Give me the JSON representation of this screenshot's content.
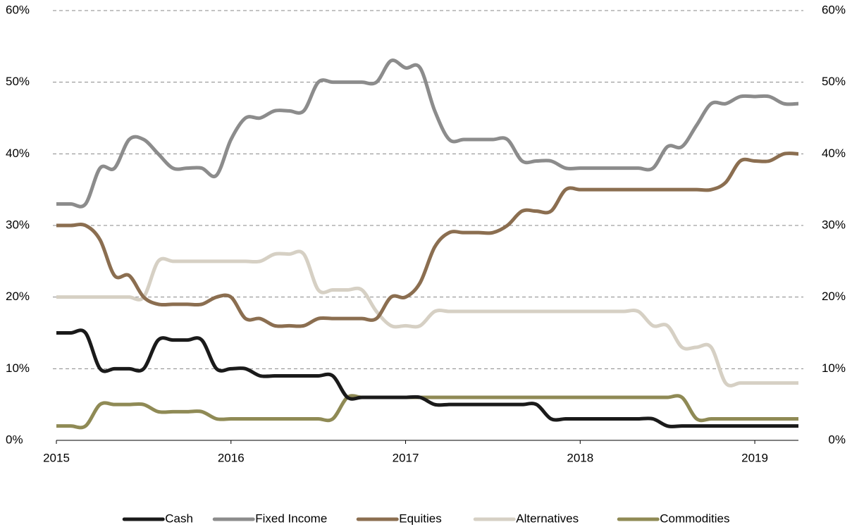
{
  "chart_data": {
    "type": "line",
    "x": [
      2015,
      2015.083,
      2015.167,
      2015.25,
      2015.333,
      2015.417,
      2015.5,
      2015.583,
      2015.667,
      2015.75,
      2015.833,
      2015.917,
      2016,
      2016.083,
      2016.167,
      2016.25,
      2016.333,
      2016.417,
      2016.5,
      2016.583,
      2016.667,
      2016.75,
      2016.833,
      2016.917,
      2017,
      2017.083,
      2017.167,
      2017.25,
      2017.333,
      2017.417,
      2017.5,
      2017.583,
      2017.667,
      2017.75,
      2017.833,
      2017.917,
      2018,
      2018.083,
      2018.167,
      2018.25,
      2018.333,
      2018.417,
      2018.5,
      2018.583,
      2018.667,
      2018.75,
      2018.833,
      2018.917,
      2019,
      2019.083,
      2019.167,
      2019.25
    ],
    "series": [
      {
        "name": "Cash",
        "color": "#1a1a1a",
        "values": [
          15,
          15,
          15,
          10,
          10,
          10,
          10,
          14,
          14,
          14,
          14,
          10,
          10,
          10,
          9,
          9,
          9,
          9,
          9,
          9,
          6,
          6,
          6,
          6,
          6,
          6,
          5,
          5,
          5,
          5,
          5,
          5,
          5,
          5,
          3,
          3,
          3,
          3,
          3,
          3,
          3,
          3,
          2,
          2,
          2,
          2,
          2,
          2,
          2,
          2,
          2,
          2
        ]
      },
      {
        "name": "Fixed Income",
        "color": "#8c8c8c",
        "values": [
          33,
          33,
          33,
          38,
          38,
          42,
          42,
          40,
          38,
          38,
          38,
          37,
          42,
          45,
          45,
          46,
          46,
          46,
          50,
          50,
          50,
          50,
          50,
          53,
          52,
          52,
          46,
          42,
          42,
          42,
          42,
          42,
          39,
          39,
          39,
          38,
          38,
          38,
          38,
          38,
          38,
          38,
          41,
          41,
          44,
          47,
          47,
          48,
          48,
          48,
          47,
          47
        ]
      },
      {
        "name": "Equities",
        "color": "#8b6e50",
        "values": [
          30,
          30,
          30,
          28,
          23,
          23,
          20,
          19,
          19,
          19,
          19,
          20,
          20,
          17,
          17,
          16,
          16,
          16,
          17,
          17,
          17,
          17,
          17,
          20,
          20,
          22,
          27,
          29,
          29,
          29,
          29,
          30,
          32,
          32,
          32,
          35,
          35,
          35,
          35,
          35,
          35,
          35,
          35,
          35,
          35,
          35,
          36,
          39,
          39,
          39,
          40,
          40
        ]
      },
      {
        "name": "Alternatives",
        "color": "#d6d0c4",
        "values": [
          20,
          20,
          20,
          20,
          20,
          20,
          20,
          25,
          25,
          25,
          25,
          25,
          25,
          25,
          25,
          26,
          26,
          26,
          21,
          21,
          21,
          21,
          18,
          16,
          16,
          16,
          18,
          18,
          18,
          18,
          18,
          18,
          18,
          18,
          18,
          18,
          18,
          18,
          18,
          18,
          18,
          16,
          16,
          13,
          13,
          13,
          8,
          8,
          8,
          8,
          8,
          8
        ]
      },
      {
        "name": "Commodities",
        "color": "#8f8a55",
        "values": [
          2,
          2,
          2,
          5,
          5,
          5,
          5,
          4,
          4,
          4,
          4,
          3,
          3,
          3,
          3,
          3,
          3,
          3,
          3,
          3,
          6,
          6,
          6,
          6,
          6,
          6,
          6,
          6,
          6,
          6,
          6,
          6,
          6,
          6,
          6,
          6,
          6,
          6,
          6,
          6,
          6,
          6,
          6,
          6,
          3,
          3,
          3,
          3,
          3,
          3,
          3,
          3
        ]
      }
    ],
    "xlim": [
      2015,
      2019.25
    ],
    "xticks": [
      2015,
      2016,
      2017,
      2018,
      2019
    ],
    "ylim": [
      0,
      60
    ],
    "yticks": [
      {
        "value": 0,
        "label": "0%"
      },
      {
        "value": 10,
        "label": "10%"
      },
      {
        "value": 20,
        "label": "20%"
      },
      {
        "value": 30,
        "label": "30%"
      },
      {
        "value": 40,
        "label": "40%"
      },
      {
        "value": 50,
        "label": "50%"
      },
      {
        "value": 60,
        "label": "60%"
      }
    ],
    "grid": true,
    "legend": "bottom"
  }
}
